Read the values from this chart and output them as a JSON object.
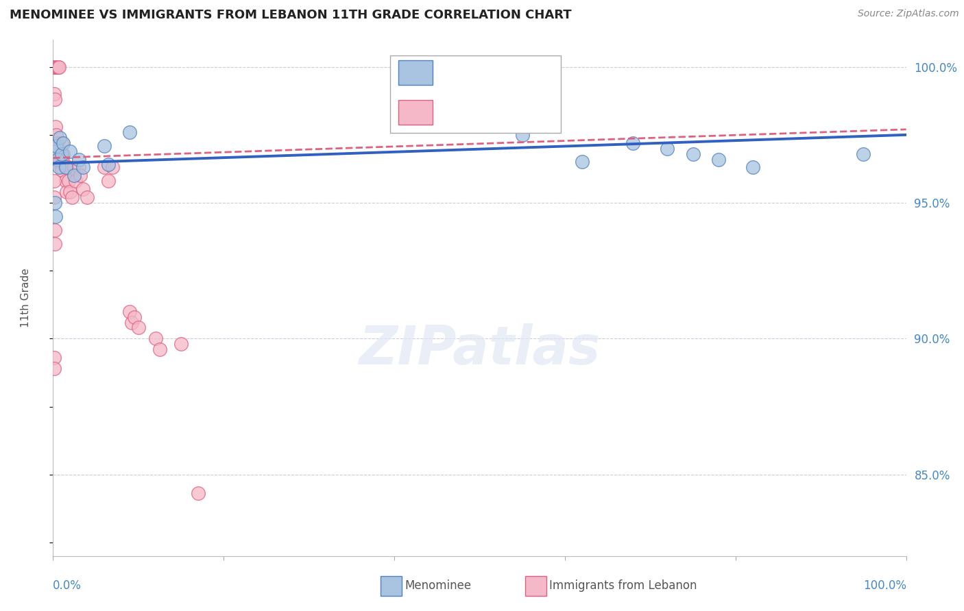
{
  "title": "MENOMINEE VS IMMIGRANTS FROM LEBANON 11TH GRADE CORRELATION CHART",
  "source": "Source: ZipAtlas.com",
  "ylabel": "11th Grade",
  "ylabel_right_ticks": [
    "100.0%",
    "95.0%",
    "90.0%",
    "85.0%"
  ],
  "ylabel_right_values": [
    1.0,
    0.95,
    0.9,
    0.85
  ],
  "watermark": "ZIPatlas",
  "blue_scatter": [
    [
      0.003,
      0.969
    ],
    [
      0.004,
      0.971
    ],
    [
      0.005,
      0.966
    ],
    [
      0.007,
      0.963
    ],
    [
      0.008,
      0.974
    ],
    [
      0.01,
      0.968
    ],
    [
      0.012,
      0.972
    ],
    [
      0.015,
      0.963
    ],
    [
      0.02,
      0.969
    ],
    [
      0.025,
      0.96
    ],
    [
      0.03,
      0.966
    ],
    [
      0.035,
      0.963
    ],
    [
      0.06,
      0.971
    ],
    [
      0.065,
      0.964
    ],
    [
      0.09,
      0.976
    ],
    [
      0.002,
      0.95
    ],
    [
      0.55,
      0.975
    ],
    [
      0.62,
      0.965
    ],
    [
      0.68,
      0.972
    ],
    [
      0.72,
      0.97
    ],
    [
      0.75,
      0.968
    ],
    [
      0.78,
      0.966
    ],
    [
      0.82,
      0.963
    ],
    [
      0.95,
      0.968
    ],
    [
      0.003,
      0.945
    ]
  ],
  "pink_scatter": [
    [
      0.001,
      1.0
    ],
    [
      0.002,
      1.0
    ],
    [
      0.003,
      1.0
    ],
    [
      0.004,
      1.0
    ],
    [
      0.005,
      1.0
    ],
    [
      0.006,
      1.0
    ],
    [
      0.007,
      1.0
    ],
    [
      0.001,
      0.99
    ],
    [
      0.002,
      0.988
    ],
    [
      0.003,
      0.978
    ],
    [
      0.004,
      0.975
    ],
    [
      0.005,
      0.972
    ],
    [
      0.006,
      0.97
    ],
    [
      0.007,
      0.967
    ],
    [
      0.008,
      0.965
    ],
    [
      0.009,
      0.963
    ],
    [
      0.01,
      0.972
    ],
    [
      0.01,
      0.967
    ],
    [
      0.01,
      0.962
    ],
    [
      0.012,
      0.968
    ],
    [
      0.013,
      0.964
    ],
    [
      0.015,
      0.958
    ],
    [
      0.016,
      0.954
    ],
    [
      0.017,
      0.963
    ],
    [
      0.018,
      0.958
    ],
    [
      0.02,
      0.954
    ],
    [
      0.022,
      0.952
    ],
    [
      0.025,
      0.963
    ],
    [
      0.026,
      0.958
    ],
    [
      0.03,
      0.963
    ],
    [
      0.032,
      0.96
    ],
    [
      0.035,
      0.955
    ],
    [
      0.04,
      0.952
    ],
    [
      0.06,
      0.963
    ],
    [
      0.065,
      0.958
    ],
    [
      0.07,
      0.963
    ],
    [
      0.09,
      0.91
    ],
    [
      0.092,
      0.906
    ],
    [
      0.095,
      0.908
    ],
    [
      0.1,
      0.904
    ],
    [
      0.12,
      0.9
    ],
    [
      0.125,
      0.896
    ],
    [
      0.15,
      0.898
    ],
    [
      0.001,
      0.958
    ],
    [
      0.001,
      0.952
    ],
    [
      0.002,
      0.94
    ],
    [
      0.002,
      0.935
    ],
    [
      0.001,
      0.893
    ],
    [
      0.001,
      0.889
    ],
    [
      0.17,
      0.843
    ],
    [
      0.001,
      0.97
    ]
  ],
  "blue_color": "#A8C4E0",
  "pink_color": "#F5B8C8",
  "blue_edge_color": "#5080C0",
  "pink_edge_color": "#E06080",
  "blue_line_color": "#3060C0",
  "pink_line_color": "#E06080",
  "grid_color": "#CCCCDD",
  "axis_label_color": "#4488CC",
  "background_color": "#FFFFFF",
  "xlim": [
    0.0,
    1.0
  ],
  "ylim": [
    0.82,
    1.01
  ]
}
